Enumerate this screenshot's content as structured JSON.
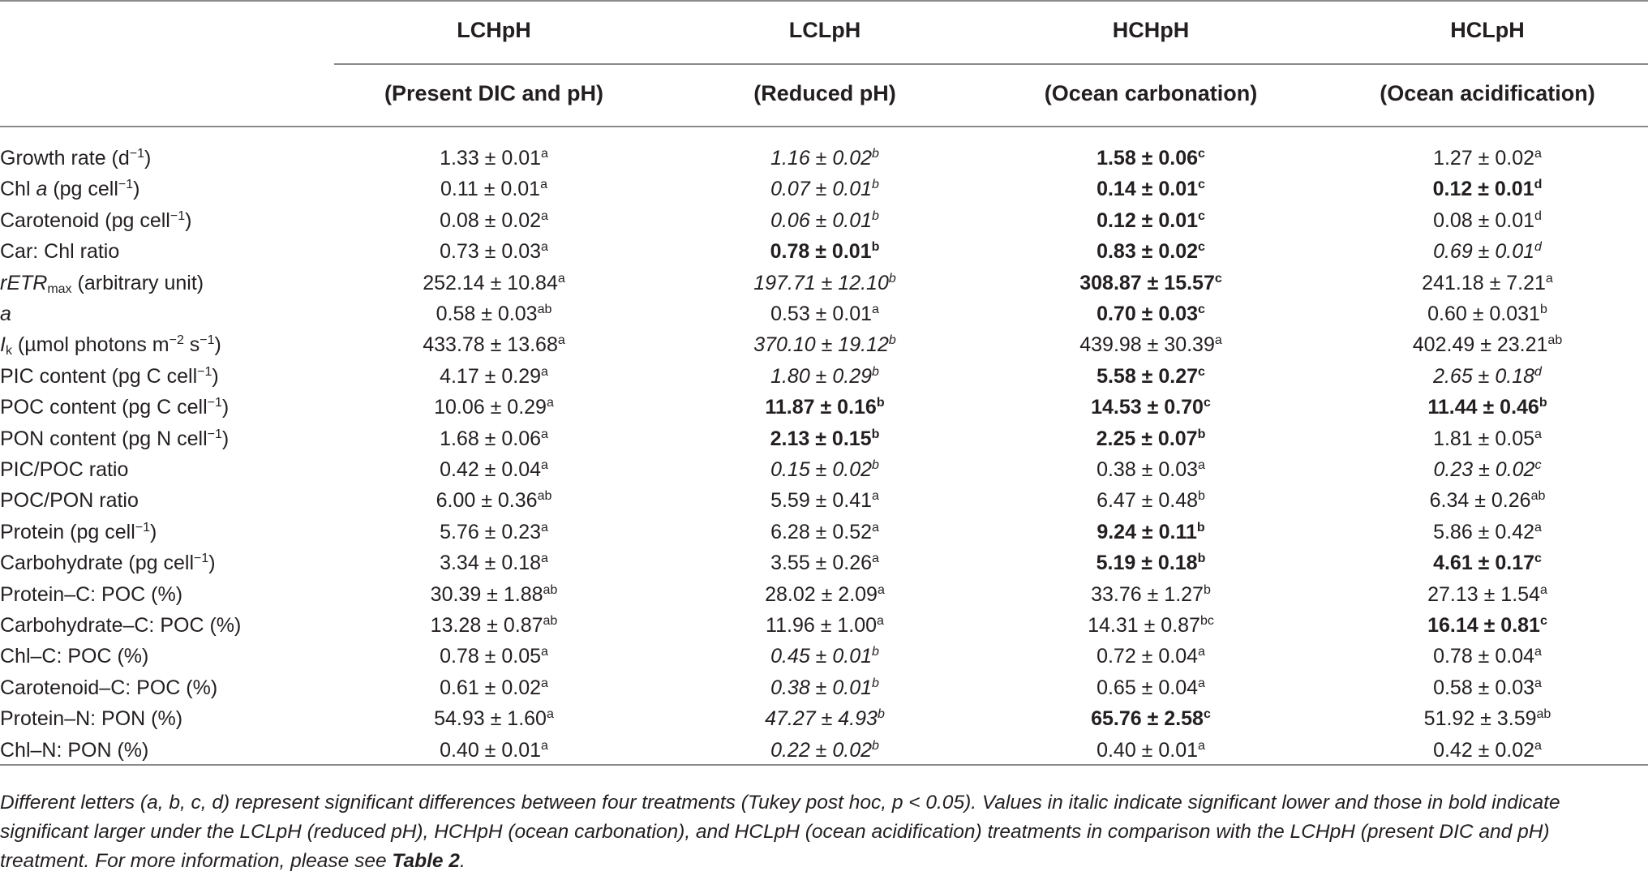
{
  "table": {
    "columns": [
      {
        "name": "LCHpH",
        "subtitle": "(Present DIC and pH)"
      },
      {
        "name": "LCLpH",
        "subtitle": "(Reduced pH)"
      },
      {
        "name": "HCHpH",
        "subtitle": "(Ocean carbonation)"
      },
      {
        "name": "HCLpH",
        "subtitle": "(Ocean acidification)"
      }
    ],
    "rows": [
      {
        "label": [
          {
            "t": "Growth rate (d"
          },
          {
            "t": "−1",
            "f": "sup"
          },
          {
            "t": ")"
          }
        ],
        "cells": [
          {
            "v": "1.33 ± 0.01",
            "sup": "a"
          },
          {
            "v": "1.16 ± 0.02",
            "sup": "b",
            "style": "italic"
          },
          {
            "v": "1.58 ± 0.06",
            "sup": "c",
            "style": "bold"
          },
          {
            "v": "1.27 ± 0.02",
            "sup": "a"
          }
        ]
      },
      {
        "label": [
          {
            "t": "Chl "
          },
          {
            "t": "a",
            "f": "i"
          },
          {
            "t": " (pg cell"
          },
          {
            "t": "−1",
            "f": "sup"
          },
          {
            "t": ")"
          }
        ],
        "cells": [
          {
            "v": "0.11 ± 0.01",
            "sup": "a"
          },
          {
            "v": "0.07 ± 0.01",
            "sup": "b",
            "style": "italic"
          },
          {
            "v": "0.14 ± 0.01",
            "sup": "c",
            "style": "bold"
          },
          {
            "v": "0.12 ± 0.01",
            "sup": "d",
            "style": "bold"
          }
        ]
      },
      {
        "label": [
          {
            "t": "Carotenoid (pg cell"
          },
          {
            "t": "−1",
            "f": "sup"
          },
          {
            "t": ")"
          }
        ],
        "cells": [
          {
            "v": "0.08 ± 0.02",
            "sup": "a"
          },
          {
            "v": "0.06 ± 0.01",
            "sup": "b",
            "style": "italic"
          },
          {
            "v": "0.12 ± 0.01",
            "sup": "c",
            "style": "bold"
          },
          {
            "v": "0.08 ± 0.01",
            "sup": "d"
          }
        ]
      },
      {
        "label": [
          {
            "t": "Car: Chl ratio"
          }
        ],
        "cells": [
          {
            "v": "0.73 ± 0.03",
            "sup": "a"
          },
          {
            "v": "0.78 ± 0.01",
            "sup": "b",
            "style": "bold"
          },
          {
            "v": "0.83 ± 0.02",
            "sup": "c",
            "style": "bold"
          },
          {
            "v": "0.69 ± 0.01",
            "sup": "d",
            "style": "italic"
          }
        ]
      },
      {
        "label": [
          {
            "t": "rETR",
            "f": "i"
          },
          {
            "t": "max",
            "f": "sub"
          },
          {
            "t": " (arbitrary unit)"
          }
        ],
        "cells": [
          {
            "v": "252.14 ± 10.84",
            "sup": "a"
          },
          {
            "v": "197.71 ± 12.10",
            "sup": "b",
            "style": "italic"
          },
          {
            "v": "308.87 ± 15.57",
            "sup": "c",
            "style": "bold"
          },
          {
            "v": "241.18 ± 7.21",
            "sup": "a"
          }
        ]
      },
      {
        "label": [
          {
            "t": "a",
            "f": "i"
          }
        ],
        "cells": [
          {
            "v": "0.58 ± 0.03",
            "sup": "ab"
          },
          {
            "v": "0.53 ± 0.01",
            "sup": "a"
          },
          {
            "v": "0.70 ± 0.03",
            "sup": "c",
            "style": "bold"
          },
          {
            "v": "0.60 ± 0.031",
            "sup": "b"
          }
        ]
      },
      {
        "label": [
          {
            "t": "I",
            "f": "i"
          },
          {
            "t": "k",
            "f": "sub"
          },
          {
            "t": " (µmol photons m"
          },
          {
            "t": "−2",
            "f": "sup"
          },
          {
            "t": " s"
          },
          {
            "t": "−1",
            "f": "sup"
          },
          {
            "t": ")"
          }
        ],
        "cells": [
          {
            "v": "433.78 ± 13.68",
            "sup": "a"
          },
          {
            "v": "370.10 ± 19.12",
            "sup": "b",
            "style": "italic"
          },
          {
            "v": "439.98 ± 30.39",
            "sup": "a"
          },
          {
            "v": "402.49 ± 23.21",
            "sup": "ab"
          }
        ]
      },
      {
        "label": [
          {
            "t": "PIC content (pg C cell"
          },
          {
            "t": "−1",
            "f": "sup"
          },
          {
            "t": ")"
          }
        ],
        "cells": [
          {
            "v": "4.17 ± 0.29",
            "sup": "a"
          },
          {
            "v": "1.80 ± 0.29",
            "sup": "b",
            "style": "italic"
          },
          {
            "v": "5.58 ± 0.27",
            "sup": "c",
            "style": "bold"
          },
          {
            "v": "2.65 ± 0.18",
            "sup": "d",
            "style": "italic"
          }
        ]
      },
      {
        "label": [
          {
            "t": "POC content (pg C cell"
          },
          {
            "t": "−1",
            "f": "sup"
          },
          {
            "t": ")"
          }
        ],
        "cells": [
          {
            "v": "10.06 ± 0.29",
            "sup": "a"
          },
          {
            "v": "11.87 ± 0.16",
            "sup": "b",
            "style": "bold"
          },
          {
            "v": "14.53 ± 0.70",
            "sup": "c",
            "style": "bold"
          },
          {
            "v": "11.44 ± 0.46",
            "sup": "b",
            "style": "bold"
          }
        ]
      },
      {
        "label": [
          {
            "t": "PON content (pg N cell"
          },
          {
            "t": "−1",
            "f": "sup"
          },
          {
            "t": ")"
          }
        ],
        "cells": [
          {
            "v": "1.68 ± 0.06",
            "sup": "a"
          },
          {
            "v": "2.13 ± 0.15",
            "sup": "b",
            "style": "bold"
          },
          {
            "v": "2.25 ± 0.07",
            "sup": "b",
            "style": "bold"
          },
          {
            "v": "1.81 ± 0.05",
            "sup": "a"
          }
        ]
      },
      {
        "label": [
          {
            "t": "PIC/POC ratio"
          }
        ],
        "cells": [
          {
            "v": "0.42 ± 0.04",
            "sup": "a"
          },
          {
            "v": "0.15 ± 0.02",
            "sup": "b",
            "style": "italic"
          },
          {
            "v": "0.38 ± 0.03",
            "sup": "a"
          },
          {
            "v": "0.23 ± 0.02",
            "sup": "c",
            "style": "italic"
          }
        ]
      },
      {
        "label": [
          {
            "t": "POC/PON ratio"
          }
        ],
        "cells": [
          {
            "v": "6.00 ± 0.36",
            "sup": "ab"
          },
          {
            "v": "5.59 ± 0.41",
            "sup": "a"
          },
          {
            "v": "6.47 ± 0.48",
            "sup": "b"
          },
          {
            "v": "6.34 ± 0.26",
            "sup": "ab"
          }
        ]
      },
      {
        "label": [
          {
            "t": "Protein (pg cell"
          },
          {
            "t": "−1",
            "f": "sup"
          },
          {
            "t": ")"
          }
        ],
        "cells": [
          {
            "v": "5.76 ± 0.23",
            "sup": "a"
          },
          {
            "v": "6.28 ± 0.52",
            "sup": "a"
          },
          {
            "v": "9.24 ± 0.11",
            "sup": "b",
            "style": "bold"
          },
          {
            "v": "5.86 ± 0.42",
            "sup": "a"
          }
        ]
      },
      {
        "label": [
          {
            "t": "Carbohydrate (pg cell"
          },
          {
            "t": "−1",
            "f": "sup"
          },
          {
            "t": ")"
          }
        ],
        "cells": [
          {
            "v": "3.34 ± 0.18",
            "sup": "a"
          },
          {
            "v": "3.55 ± 0.26",
            "sup": "a"
          },
          {
            "v": "5.19 ± 0.18",
            "sup": "b",
            "style": "bold"
          },
          {
            "v": "4.61 ± 0.17",
            "sup": "c",
            "style": "bold"
          }
        ]
      },
      {
        "label": [
          {
            "t": "Protein–C: POC (%)"
          }
        ],
        "cells": [
          {
            "v": "30.39 ± 1.88",
            "sup": "ab"
          },
          {
            "v": "28.02 ± 2.09",
            "sup": "a"
          },
          {
            "v": "33.76 ± 1.27",
            "sup": "b"
          },
          {
            "v": "27.13 ± 1.54",
            "sup": "a"
          }
        ]
      },
      {
        "label": [
          {
            "t": "Carbohydrate–C: POC (%)"
          }
        ],
        "cells": [
          {
            "v": "13.28 ± 0.87",
            "sup": "ab"
          },
          {
            "v": "11.96 ± 1.00",
            "sup": "a"
          },
          {
            "v": "14.31 ± 0.87",
            "sup": "bc"
          },
          {
            "v": "16.14 ± 0.81",
            "sup": "c",
            "style": "bold"
          }
        ]
      },
      {
        "label": [
          {
            "t": "Chl–C: POC (%)"
          }
        ],
        "cells": [
          {
            "v": "0.78 ± 0.05",
            "sup": "a"
          },
          {
            "v": "0.45 ± 0.01",
            "sup": "b",
            "style": "italic"
          },
          {
            "v": "0.72 ± 0.04",
            "sup": "a"
          },
          {
            "v": "0.78 ± 0.04",
            "sup": "a"
          }
        ]
      },
      {
        "label": [
          {
            "t": "Carotenoid–C: POC (%)"
          }
        ],
        "cells": [
          {
            "v": "0.61 ± 0.02",
            "sup": "a"
          },
          {
            "v": "0.38 ± 0.01",
            "sup": "b",
            "style": "italic"
          },
          {
            "v": "0.65 ± 0.04",
            "sup": "a"
          },
          {
            "v": "0.58 ± 0.03",
            "sup": "a"
          }
        ]
      },
      {
        "label": [
          {
            "t": "Protein–N: PON (%)"
          }
        ],
        "cells": [
          {
            "v": "54.93 ± 1.60",
            "sup": "a"
          },
          {
            "v": "47.27 ± 4.93",
            "sup": "b",
            "style": "italic"
          },
          {
            "v": "65.76 ± 2.58",
            "sup": "c",
            "style": "bold"
          },
          {
            "v": "51.92 ± 3.59",
            "sup": "ab"
          }
        ]
      },
      {
        "label": [
          {
            "t": "Chl–N: PON (%)"
          }
        ],
        "cells": [
          {
            "v": "0.40 ± 0.01",
            "sup": "a"
          },
          {
            "v": "0.22 ± 0.02",
            "sup": "b",
            "style": "italic"
          },
          {
            "v": "0.40 ± 0.01",
            "sup": "a"
          },
          {
            "v": "0.42 ± 0.02",
            "sup": "a"
          }
        ]
      }
    ],
    "footnote": [
      {
        "t": "Different letters (a, b, c, d) represent significant differences between four treatments (Tukey post hoc, p < 0.05). Values in italic indicate significant lower and those in bold indicate significant larger under the LCLpH (reduced pH), HCHpH (ocean carbonation), and HCLpH (ocean acidification) treatments in comparison with the LCHpH (present DIC and pH) treatment. For more information, please see "
      },
      {
        "t": "Table 2",
        "f": "b"
      },
      {
        "t": "."
      }
    ]
  }
}
